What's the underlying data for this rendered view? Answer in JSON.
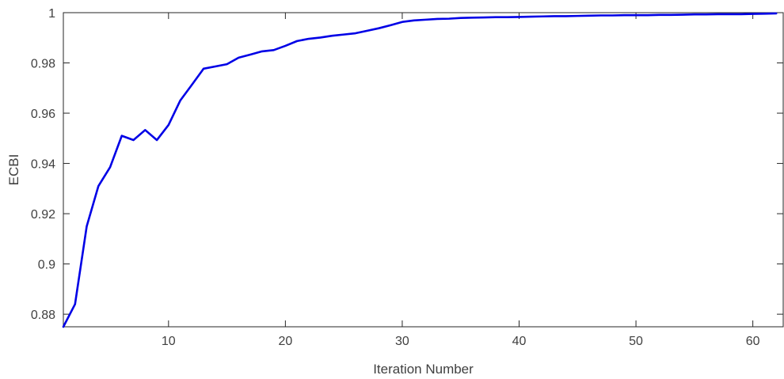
{
  "chart_data": {
    "type": "line",
    "title": "",
    "xlabel": "Iteration Number",
    "ylabel": "ECBI",
    "xlim": [
      1,
      62.6
    ],
    "ylim": [
      0.875,
      1.0
    ],
    "xticks": [
      10,
      20,
      30,
      40,
      50,
      60
    ],
    "yticks": [
      0.88,
      0.9,
      0.92,
      0.94,
      0.96,
      0.98,
      1.0
    ],
    "xtick_labels": [
      "10",
      "20",
      "30",
      "40",
      "50",
      "60"
    ],
    "ytick_labels": [
      "0.88",
      "0.9",
      "0.92",
      "0.94",
      "0.96",
      "0.98",
      "1"
    ],
    "grid": false,
    "box": true,
    "series": [
      {
        "color": "#0000e6",
        "x": [
          1,
          2,
          3,
          4,
          5,
          6,
          7,
          8,
          9,
          10,
          11,
          12,
          13,
          14,
          15,
          16,
          17,
          18,
          19,
          20,
          21,
          22,
          23,
          24,
          25,
          26,
          27,
          28,
          29,
          30,
          31,
          32,
          33,
          34,
          35,
          36,
          37,
          38,
          39,
          40,
          41,
          42,
          43,
          44,
          45,
          46,
          47,
          48,
          49,
          50,
          51,
          52,
          53,
          54,
          55,
          56,
          57,
          58,
          59,
          60,
          61,
          62
        ],
        "y": [
          0.875,
          0.884,
          0.915,
          0.931,
          0.9385,
          0.951,
          0.9493,
          0.9533,
          0.9493,
          0.9553,
          0.965,
          0.9713,
          0.9777,
          0.9786,
          0.9795,
          0.9821,
          0.9833,
          0.9846,
          0.9851,
          0.9868,
          0.9887,
          0.9896,
          0.9901,
          0.9908,
          0.9913,
          0.9918,
          0.9928,
          0.9938,
          0.995,
          0.9963,
          0.9969,
          0.9972,
          0.9975,
          0.9976,
          0.9979,
          0.998,
          0.9981,
          0.9982,
          0.9982,
          0.9983,
          0.9984,
          0.9985,
          0.9986,
          0.9986,
          0.9987,
          0.9988,
          0.9989,
          0.9989,
          0.999,
          0.999,
          0.999,
          0.9991,
          0.9991,
          0.9992,
          0.9993,
          0.9993,
          0.9994,
          0.9994,
          0.9994,
          0.9995,
          0.9996,
          0.9997
        ]
      }
    ]
  }
}
